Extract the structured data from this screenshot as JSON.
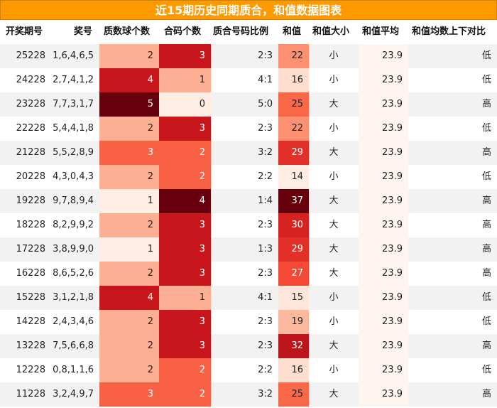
{
  "title": "近15期历史同期质合，和值数据图表",
  "columns": [
    "开奖期号",
    "奖号",
    "质数球个数",
    "合码个数",
    "质合号码比例",
    "和值",
    "和值大小",
    "和值平均",
    "和值均数上下对比"
  ],
  "rows": [
    {
      "issue": "25228",
      "numbers": "1,6,4,6,5",
      "prime": "2",
      "composite": "3",
      "ratio": "2:3",
      "sum": "22",
      "size": "小",
      "avg": "23.9",
      "cmp": "低"
    },
    {
      "issue": "24228",
      "numbers": "2,7,4,1,2",
      "prime": "4",
      "composite": "1",
      "ratio": "4:1",
      "sum": "16",
      "size": "小",
      "avg": "23.9",
      "cmp": "低"
    },
    {
      "issue": "23228",
      "numbers": "7,7,3,1,7",
      "prime": "5",
      "composite": "0",
      "ratio": "5:0",
      "sum": "25",
      "size": "大",
      "avg": "23.9",
      "cmp": "高"
    },
    {
      "issue": "22228",
      "numbers": "5,4,4,1,8",
      "prime": "2",
      "composite": "3",
      "ratio": "2:3",
      "sum": "22",
      "size": "小",
      "avg": "23.9",
      "cmp": "低"
    },
    {
      "issue": "21228",
      "numbers": "5,5,2,8,9",
      "prime": "3",
      "composite": "2",
      "ratio": "3:2",
      "sum": "29",
      "size": "大",
      "avg": "23.9",
      "cmp": "高"
    },
    {
      "issue": "20228",
      "numbers": "4,3,0,4,3",
      "prime": "2",
      "composite": "2",
      "ratio": "2:2",
      "sum": "14",
      "size": "小",
      "avg": "23.9",
      "cmp": "低"
    },
    {
      "issue": "19228",
      "numbers": "9,7,8,9,4",
      "prime": "1",
      "composite": "4",
      "ratio": "1:4",
      "sum": "37",
      "size": "大",
      "avg": "23.9",
      "cmp": "高"
    },
    {
      "issue": "18228",
      "numbers": "8,2,9,9,2",
      "prime": "2",
      "composite": "3",
      "ratio": "2:3",
      "sum": "30",
      "size": "大",
      "avg": "23.9",
      "cmp": "高"
    },
    {
      "issue": "17228",
      "numbers": "3,8,9,9,0",
      "prime": "1",
      "composite": "3",
      "ratio": "1:3",
      "sum": "29",
      "size": "大",
      "avg": "23.9",
      "cmp": "高"
    },
    {
      "issue": "16228",
      "numbers": "8,6,5,2,6",
      "prime": "2",
      "composite": "3",
      "ratio": "2:3",
      "sum": "27",
      "size": "大",
      "avg": "23.9",
      "cmp": "高"
    },
    {
      "issue": "15228",
      "numbers": "3,1,2,1,8",
      "prime": "4",
      "composite": "1",
      "ratio": "4:1",
      "sum": "15",
      "size": "小",
      "avg": "23.9",
      "cmp": "低"
    },
    {
      "issue": "14228",
      "numbers": "2,4,3,4,6",
      "prime": "2",
      "composite": "3",
      "ratio": "2:3",
      "sum": "19",
      "size": "小",
      "avg": "23.9",
      "cmp": "低"
    },
    {
      "issue": "13228",
      "numbers": "7,5,6,6,8",
      "prime": "2",
      "composite": "3",
      "ratio": "2:3",
      "sum": "32",
      "size": "大",
      "avg": "23.9",
      "cmp": "高"
    },
    {
      "issue": "12228",
      "numbers": "0,8,1,1,6",
      "prime": "2",
      "composite": "2",
      "ratio": "2:2",
      "sum": "16",
      "size": "小",
      "avg": "23.9",
      "cmp": "低"
    },
    {
      "issue": "11228",
      "numbers": "3,2,4,9,7",
      "prime": "3",
      "composite": "2",
      "ratio": "3:2",
      "sum": "25",
      "size": "大",
      "avg": "23.9",
      "cmp": "高"
    }
  ],
  "chart_data": {
    "type": "table",
    "title": "近15期历史同期质合，和值数据图表",
    "columns": [
      "开奖期号",
      "奖号",
      "质数球个数",
      "合码个数",
      "质合号码比例",
      "和值",
      "和值大小",
      "和值平均",
      "和值均数上下对比"
    ],
    "heatmap_columns": [
      "质数球个数",
      "合码个数",
      "和值"
    ],
    "colors": {
      "title_bar": "#ff9900",
      "low": "#fff5f0",
      "high": "#67000d",
      "avg_column": "#fff5f0",
      "alt_row": "#f2f2f2"
    }
  }
}
